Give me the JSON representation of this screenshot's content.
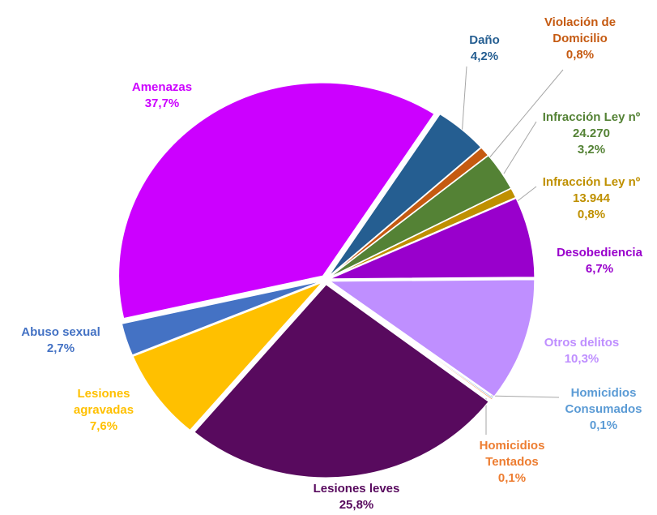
{
  "chart_data": {
    "type": "pie",
    "categories": [
      "Daño",
      "Violación de Domicilio",
      "Infracción Ley nº 24.270",
      "Infracción Ley nº 13.944",
      "Desobediencia",
      "Otros delitos",
      "Homicidios Consumados",
      "Homicidios Tentados",
      "Lesiones leves",
      "Lesiones agravadas",
      "Abuso sexual",
      "Amenazas"
    ],
    "values": [
      4.2,
      0.8,
      3.2,
      0.8,
      6.7,
      10.3,
      0.1,
      0.1,
      25.8,
      7.6,
      2.7,
      37.7
    ],
    "value_labels": [
      "4,2%",
      "0,8%",
      "3,2%",
      "0,8%",
      "6,7%",
      "10,3%",
      "0,1%",
      "0,1%",
      "25,8%",
      "7,6%",
      "2,7%",
      "37,7%"
    ],
    "colors": [
      "#255e91",
      "#c55a11",
      "#548235",
      "#bf9000",
      "#9900cc",
      "#bf8fff",
      "#5b9bd5",
      "#ed7d31",
      "#580a5e",
      "#ffc000",
      "#4472c4",
      "#cc00ff"
    ]
  }
}
